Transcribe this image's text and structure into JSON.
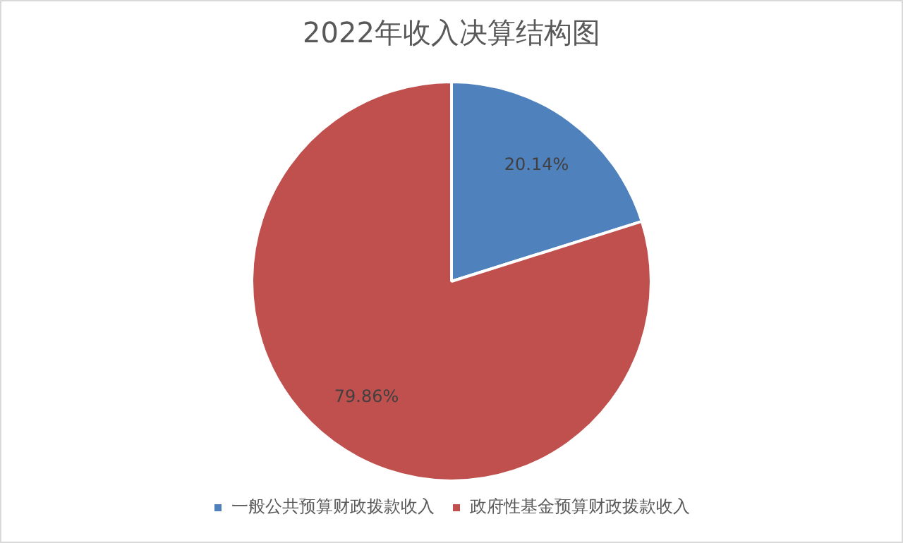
{
  "chart_data": {
    "type": "pie",
    "title": "2022年收入决算结构图",
    "categories": [
      "一般公共预算财政拨款收入",
      "政府性基金预算财政拨款收入"
    ],
    "values": [
      20.14,
      79.86
    ],
    "colors": [
      "#4f81bd",
      "#c0504d"
    ],
    "value_labels": [
      "20.14%",
      "79.86%"
    ],
    "legend": "bottom"
  }
}
